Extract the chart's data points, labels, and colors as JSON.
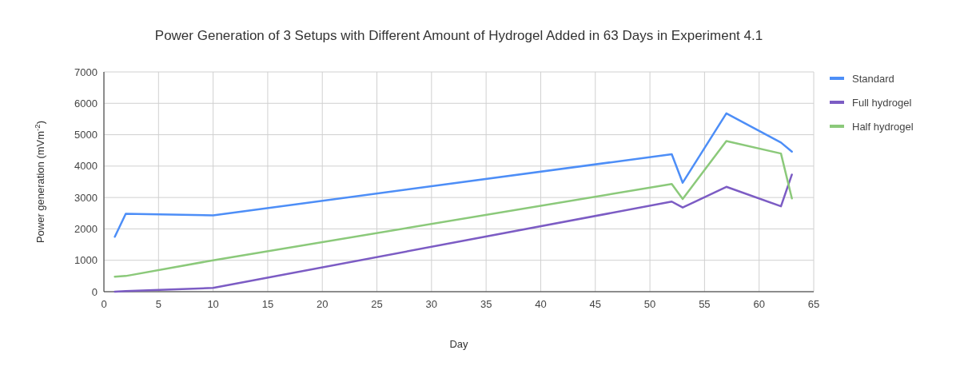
{
  "chart_data": {
    "type": "line",
    "title": "Power Generation of 3 Setups with Different Amount of Hydrogel Added in 63 Days in Experiment 4.1",
    "xlabel": "Day",
    "ylabel": "Power generation (mVm$^{-2}$)",
    "x": [
      1,
      2,
      10,
      52,
      53,
      57,
      62,
      63
    ],
    "series": [
      {
        "name": "Standard",
        "color": "#4d8ef7",
        "values": [
          1750,
          2480,
          2430,
          4380,
          3470,
          5680,
          4750,
          4460
        ]
      },
      {
        "name": "Full hydrogel",
        "color": "#7c5cc4",
        "values": [
          0,
          20,
          120,
          2870,
          2680,
          3340,
          2720,
          3730
        ]
      },
      {
        "name": "Half hydrogel",
        "color": "#8bc97a",
        "values": [
          480,
          500,
          1000,
          3430,
          2950,
          4800,
          4400,
          2970
        ]
      }
    ],
    "xlim": [
      0,
      65
    ],
    "xticks": [
      0,
      5,
      10,
      15,
      20,
      25,
      30,
      35,
      40,
      45,
      50,
      55,
      60,
      65
    ],
    "ylim": [
      0,
      7000
    ],
    "yticks": [
      0,
      1000,
      2000,
      3000,
      4000,
      5000,
      6000,
      7000
    ],
    "grid": true,
    "legend": "right",
    "marker": "none",
    "line_style": "solid"
  }
}
